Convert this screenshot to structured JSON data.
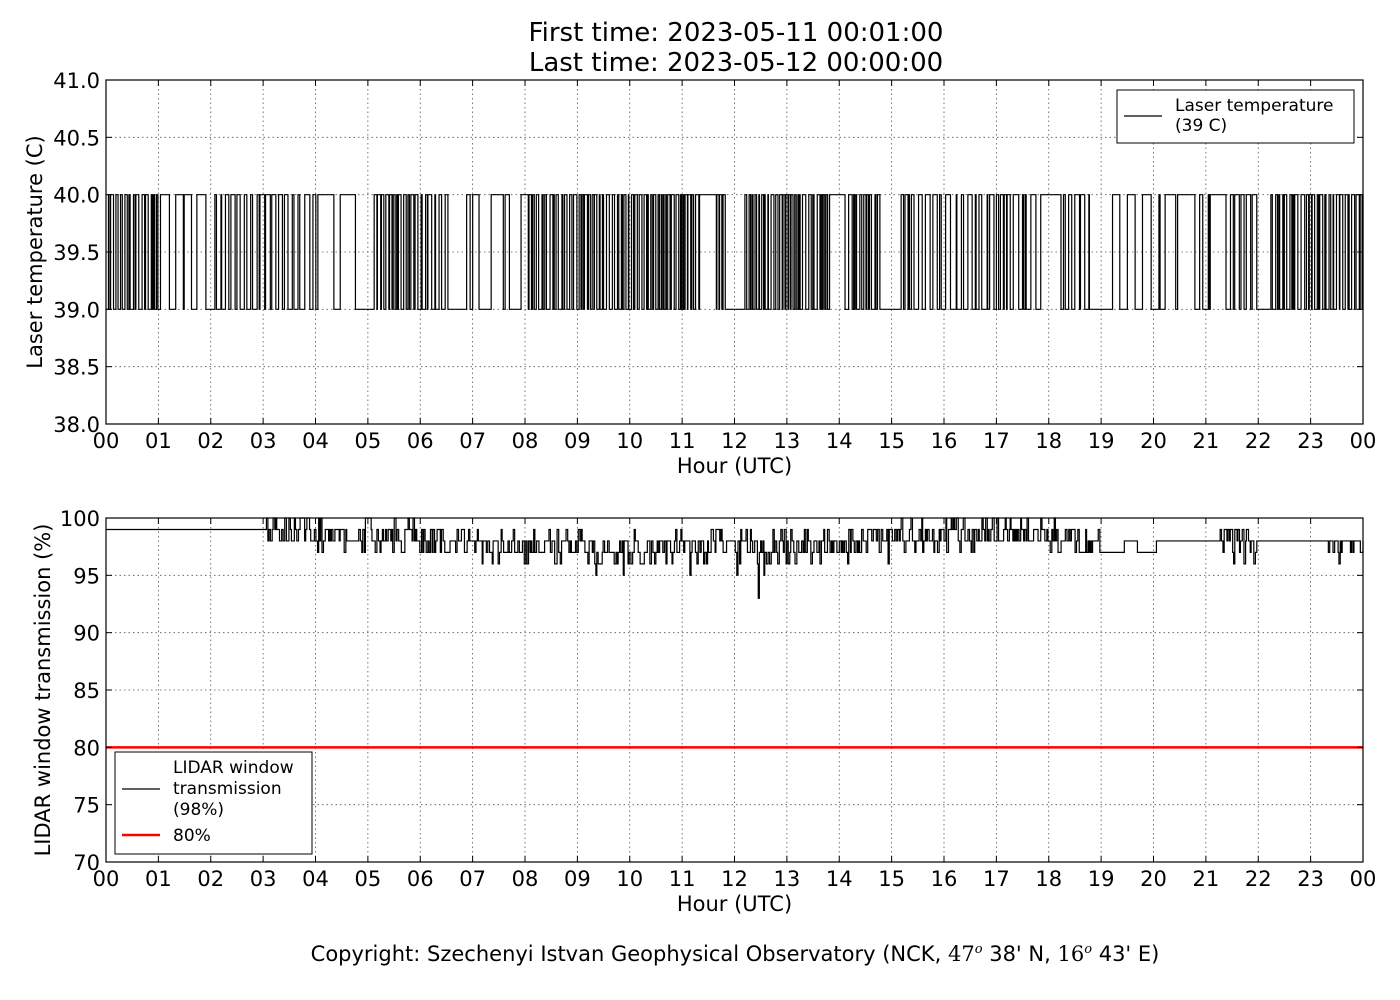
{
  "header": {
    "title_line1": "First time: 2023-05-11 00:01:00",
    "title_line2": "Last time: 2023-05-12 00:00:00"
  },
  "footer": {
    "copyright_text": "Copyright: Szechenyi Istvan Geophysical Observatory (NCK,",
    "lat_deg": "47",
    "lat_min": "38' N,",
    "lon_deg": "16",
    "lon_min": "43' E)",
    "degree_symbol": "o"
  },
  "colors": {
    "series": "#000000",
    "threshold": "#ff0000",
    "grid": "#555555"
  },
  "chart_data": [
    {
      "type": "line",
      "xlabel": "Hour (UTC)",
      "ylabel": "Laser temperature (C)",
      "xlim": [
        0,
        24
      ],
      "ylim": [
        38.0,
        41.0
      ],
      "x_ticks": [
        "00",
        "01",
        "02",
        "03",
        "04",
        "05",
        "06",
        "07",
        "08",
        "09",
        "10",
        "11",
        "12",
        "13",
        "14",
        "15",
        "16",
        "17",
        "18",
        "19",
        "20",
        "21",
        "22",
        "23",
        "00"
      ],
      "y_ticks": [
        "38.0",
        "38.5",
        "39.0",
        "39.5",
        "40.0",
        "40.5",
        "41.0"
      ],
      "grid": true,
      "legend_position": "top-right",
      "series": [
        {
          "name": "Laser temperature\n(39 C)",
          "description": "rapid switching between 39.0 and 40.0 all day",
          "levels": [
            39.0,
            40.0
          ],
          "activity_by_hour": [
            0.8,
            0.3,
            0.6,
            0.5,
            0.4,
            0.9,
            0.7,
            0.2,
            0.8,
            1.0,
            1.0,
            0.9,
            0.9,
            0.9,
            0.8,
            0.6,
            0.4,
            0.5,
            0.6,
            0.3,
            0.5,
            0.6,
            0.8,
            0.9
          ]
        }
      ]
    },
    {
      "type": "line",
      "xlabel": "Hour (UTC)",
      "ylabel": "LIDAR window transmission (%)",
      "xlim": [
        0,
        24
      ],
      "ylim": [
        70,
        100
      ],
      "x_ticks": [
        "00",
        "01",
        "02",
        "03",
        "04",
        "05",
        "06",
        "07",
        "08",
        "09",
        "10",
        "11",
        "12",
        "13",
        "14",
        "15",
        "16",
        "17",
        "18",
        "19",
        "20",
        "21",
        "22",
        "23",
        "00"
      ],
      "y_ticks": [
        "70",
        "75",
        "80",
        "85",
        "90",
        "95",
        "100"
      ],
      "grid": true,
      "legend_position": "bottom-left",
      "series": [
        {
          "name": "LIDAR window\ntransmission\n(98%)",
          "description": "flat at 99 until ~03h, then noisy 93–100, steadier ~98 after 18h",
          "hourly_typical": [
            99,
            99,
            99,
            99,
            98.5,
            98.5,
            98,
            97.5,
            97.5,
            97,
            97.5,
            97.5,
            97.5,
            97.5,
            98,
            98.5,
            98.5,
            98.5,
            98,
            98,
            98,
            98,
            98,
            98
          ],
          "hourly_min": [
            99,
            99,
            99,
            98,
            97,
            96,
            97,
            95,
            95,
            94,
            95,
            93,
            93,
            95,
            96,
            97,
            97,
            98,
            97,
            97,
            98,
            96,
            98,
            96
          ],
          "hourly_max": [
            99,
            99,
            99,
            100,
            100,
            100,
            99,
            99,
            99,
            99,
            99,
            99,
            99,
            99,
            99,
            100,
            100,
            100,
            100,
            98,
            99,
            99,
            99,
            98
          ]
        },
        {
          "name": "80%",
          "value": 80
        }
      ]
    }
  ]
}
